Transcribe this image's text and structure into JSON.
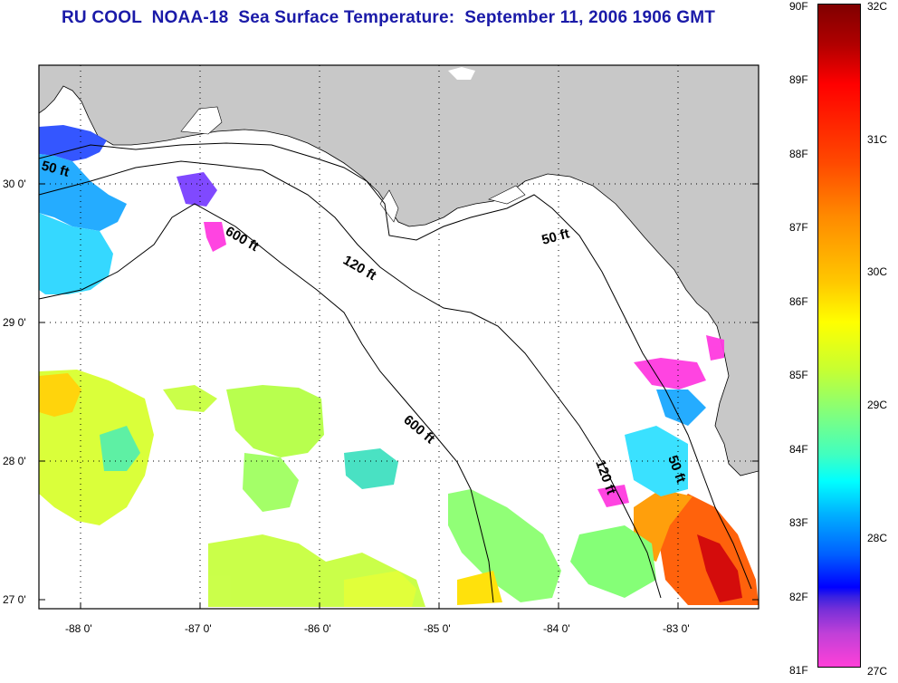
{
  "title": "RU COOL  NOAA-18  Sea Surface Temperature:  September 11, 2006 1906 GMT",
  "colors": {
    "land": "#c8c8c8",
    "water_nodata": "#ffffff",
    "title": "#1a1aa8",
    "contour": "#000000"
  },
  "axes": {
    "y_ticks": [
      "30 0'",
      "29 0'",
      "28 0'",
      "27 0'"
    ],
    "x_ticks": [
      "-88 0'",
      "-87 0'",
      "-86 0'",
      "-85 0'",
      "-84 0'",
      "-83 0'"
    ]
  },
  "contour_labels": [
    "50 ft",
    "600 ft",
    "120 ft",
    "50 ft",
    "600 ft",
    "120 ft",
    "50 ft"
  ],
  "colorbar": {
    "fahrenheit": [
      "90F",
      "89F",
      "88F",
      "87F",
      "86F",
      "85F",
      "84F",
      "83F",
      "82F",
      "81F"
    ],
    "celsius": [
      "32C",
      "31C",
      "30C",
      "29C",
      "28C",
      "27C"
    ]
  }
}
